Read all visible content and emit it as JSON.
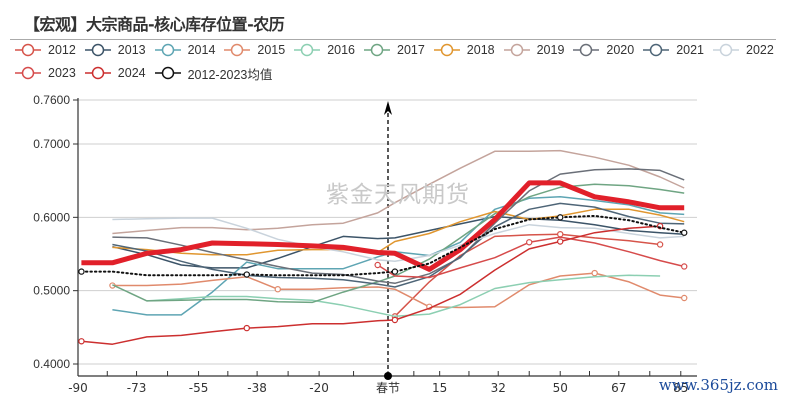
{
  "header": {
    "title": "【宏观】大宗商品-核心库存位置-农历"
  },
  "watermarks": {
    "brand": "紫金天风期货",
    "site": "www.365jz.com"
  },
  "chart_data": {
    "type": "line",
    "title": "【宏观】大宗商品-核心库存位置-农历",
    "xlabel": "",
    "ylabel": "",
    "xlim": [
      -90,
      90
    ],
    "ylim": [
      0.4,
      0.76
    ],
    "x_ticks": [
      -90,
      -73,
      -55,
      -38,
      -20,
      0,
      15,
      32,
      50,
      67,
      85
    ],
    "x_tick_labels": [
      "-90",
      "-73",
      "-55",
      "-38",
      "-20",
      "春节",
      "15",
      "32",
      "50",
      "67",
      "85"
    ],
    "y_ticks": [
      0.4,
      0.5,
      0.6,
      0.7,
      0.76
    ],
    "y_tick_labels": [
      "0.4000",
      "0.5000",
      "0.6000",
      "0.7000",
      "0.7600"
    ],
    "grid": "horizontal",
    "legend_position": "top",
    "annotation": {
      "label": "春节",
      "x": 0,
      "style": "dashed vertical arrow"
    },
    "x": [
      -89,
      -80,
      -70,
      -60,
      -51,
      -41,
      -32,
      -22,
      -13,
      -3,
      2,
      12,
      21,
      31,
      41,
      50,
      60,
      70,
      79,
      86
    ],
    "series": [
      {
        "name": "2012",
        "color": "#d6544a",
        "width": 1.5,
        "marker": "circle",
        "values": [
          null,
          null,
          null,
          null,
          null,
          null,
          null,
          null,
          null,
          null,
          0.465,
          0.512,
          0.548,
          0.574,
          0.576,
          0.577,
          0.572,
          0.568,
          0.563,
          null
        ]
      },
      {
        "name": "2013",
        "color": "#3c5468",
        "width": 1.5,
        "values": [
          null,
          0.56,
          0.549,
          0.535,
          0.531,
          0.531,
          0.544,
          0.56,
          0.574,
          0.571,
          0.572,
          0.582,
          0.591,
          0.601,
          0.598,
          0.596,
          0.59,
          0.582,
          0.579,
          0.577
        ]
      },
      {
        "name": "2014",
        "color": "#5ea5b3",
        "width": 1.5,
        "values": [
          null,
          0.474,
          0.467,
          0.467,
          0.498,
          0.539,
          0.53,
          0.53,
          0.53,
          0.546,
          0.553,
          0.548,
          0.566,
          0.611,
          0.626,
          0.628,
          0.623,
          0.617,
          0.606,
          0.604
        ]
      },
      {
        "name": "2015",
        "color": "#e08a6c",
        "width": 1.5,
        "marker": "circle",
        "values": [
          null,
          0.507,
          0.507,
          0.509,
          0.514,
          0.519,
          0.502,
          0.502,
          0.504,
          0.505,
          0.502,
          0.478,
          0.477,
          0.478,
          0.508,
          0.52,
          0.524,
          0.512,
          0.494,
          0.49
        ]
      },
      {
        "name": "2016",
        "color": "#8ccfb2",
        "width": 1.5,
        "values": [
          null,
          null,
          0.486,
          0.489,
          0.492,
          0.492,
          0.489,
          0.487,
          0.48,
          0.47,
          0.465,
          0.468,
          0.481,
          0.503,
          0.511,
          0.515,
          0.519,
          0.521,
          0.52,
          null
        ]
      },
      {
        "name": "2017",
        "color": "#6fa583",
        "width": 1.5,
        "values": [
          null,
          0.508,
          0.486,
          0.487,
          0.488,
          0.488,
          0.485,
          0.484,
          0.498,
          0.512,
          0.52,
          0.543,
          0.572,
          0.605,
          0.628,
          0.641,
          0.645,
          0.643,
          0.638,
          0.633
        ]
      },
      {
        "name": "2018",
        "color": "#e0962f",
        "width": 1.5,
        "values": [
          null,
          0.559,
          0.556,
          0.551,
          0.549,
          0.549,
          0.555,
          0.556,
          0.556,
          0.552,
          0.567,
          0.578,
          0.594,
          0.608,
          0.597,
          0.602,
          0.611,
          0.611,
          0.603,
          0.594
        ]
      },
      {
        "name": "2019",
        "color": "#c4a49c",
        "width": 1.5,
        "values": [
          null,
          0.578,
          0.582,
          0.586,
          0.586,
          0.583,
          0.585,
          0.59,
          0.592,
          0.606,
          0.62,
          0.645,
          0.667,
          0.69,
          0.69,
          0.691,
          0.682,
          0.671,
          0.655,
          0.64
        ]
      },
      {
        "name": "2020",
        "color": "#6a6f78",
        "width": 1.5,
        "values": [
          null,
          0.573,
          0.572,
          0.562,
          0.552,
          0.542,
          0.533,
          0.524,
          0.522,
          0.513,
          0.51,
          0.523,
          0.545,
          0.592,
          0.636,
          0.659,
          0.665,
          0.666,
          0.664,
          0.651
        ]
      },
      {
        "name": "2021",
        "color": "#4e6577",
        "width": 1.5,
        "values": [
          null,
          0.563,
          0.554,
          0.54,
          0.529,
          0.521,
          0.518,
          0.517,
          0.515,
          0.509,
          0.505,
          0.519,
          0.546,
          0.587,
          0.611,
          0.619,
          0.614,
          0.601,
          0.592,
          0.591
        ]
      },
      {
        "name": "2022",
        "color": "#c9d3dc",
        "width": 1.5,
        "values": [
          null,
          0.597,
          0.598,
          0.599,
          0.599,
          0.585,
          0.57,
          0.56,
          0.553,
          0.542,
          0.54,
          0.548,
          0.562,
          0.578,
          0.59,
          0.586,
          0.585,
          0.578,
          0.572,
          0.574
        ]
      },
      {
        "name": "2023",
        "color": "#d64b4b",
        "width": 1.5,
        "marker": "circle",
        "values": [
          null,
          null,
          null,
          null,
          null,
          null,
          null,
          null,
          null,
          0.535,
          0.52,
          0.518,
          0.531,
          0.545,
          0.566,
          0.573,
          0.565,
          0.553,
          0.541,
          0.533
        ]
      },
      {
        "name": "2024",
        "color": "#cc2f2f",
        "width": 1.5,
        "marker": "circle",
        "values": [
          0.431,
          0.427,
          0.437,
          0.439,
          0.444,
          0.449,
          0.451,
          0.455,
          0.455,
          0.459,
          0.46,
          0.476,
          0.495,
          0.528,
          0.557,
          0.567,
          0.579,
          0.585,
          0.588,
          null
        ]
      },
      {
        "name": "2025",
        "color": "#e1202a",
        "width": 5,
        "in_legend": false,
        "values": [
          0.538,
          0.538,
          0.551,
          0.556,
          0.565,
          0.564,
          0.563,
          0.561,
          0.559,
          0.552,
          0.551,
          0.529,
          0.556,
          0.597,
          0.647,
          0.647,
          0.628,
          0.621,
          0.613,
          0.613
        ]
      },
      {
        "name": "2012-2023均值",
        "color": "#111111",
        "width": 2,
        "dash": "dotted",
        "marker": "circle",
        "values": [
          0.526,
          0.526,
          0.521,
          0.521,
          0.521,
          0.522,
          0.521,
          0.521,
          0.521,
          0.524,
          0.526,
          0.537,
          0.559,
          0.584,
          0.597,
          0.6,
          0.602,
          0.596,
          0.586,
          0.579
        ]
      }
    ]
  },
  "legend": [
    {
      "label": "2012",
      "color": "#d6544a"
    },
    {
      "label": "2013",
      "color": "#3c5468"
    },
    {
      "label": "2014",
      "color": "#5ea5b3"
    },
    {
      "label": "2015",
      "color": "#e08a6c"
    },
    {
      "label": "2016",
      "color": "#8ccfb2"
    },
    {
      "label": "2017",
      "color": "#6fa583"
    },
    {
      "label": "2018",
      "color": "#e0962f"
    },
    {
      "label": "2019",
      "color": "#c4a49c"
    },
    {
      "label": "2020",
      "color": "#6a6f78"
    },
    {
      "label": "2021",
      "color": "#4e6577"
    },
    {
      "label": "2022",
      "color": "#c9d3dc"
    },
    {
      "label": "2023",
      "color": "#d64b4b"
    },
    {
      "label": "2024",
      "color": "#cc2f2f"
    },
    {
      "label": "2012-2023均值",
      "color": "#111111"
    }
  ]
}
